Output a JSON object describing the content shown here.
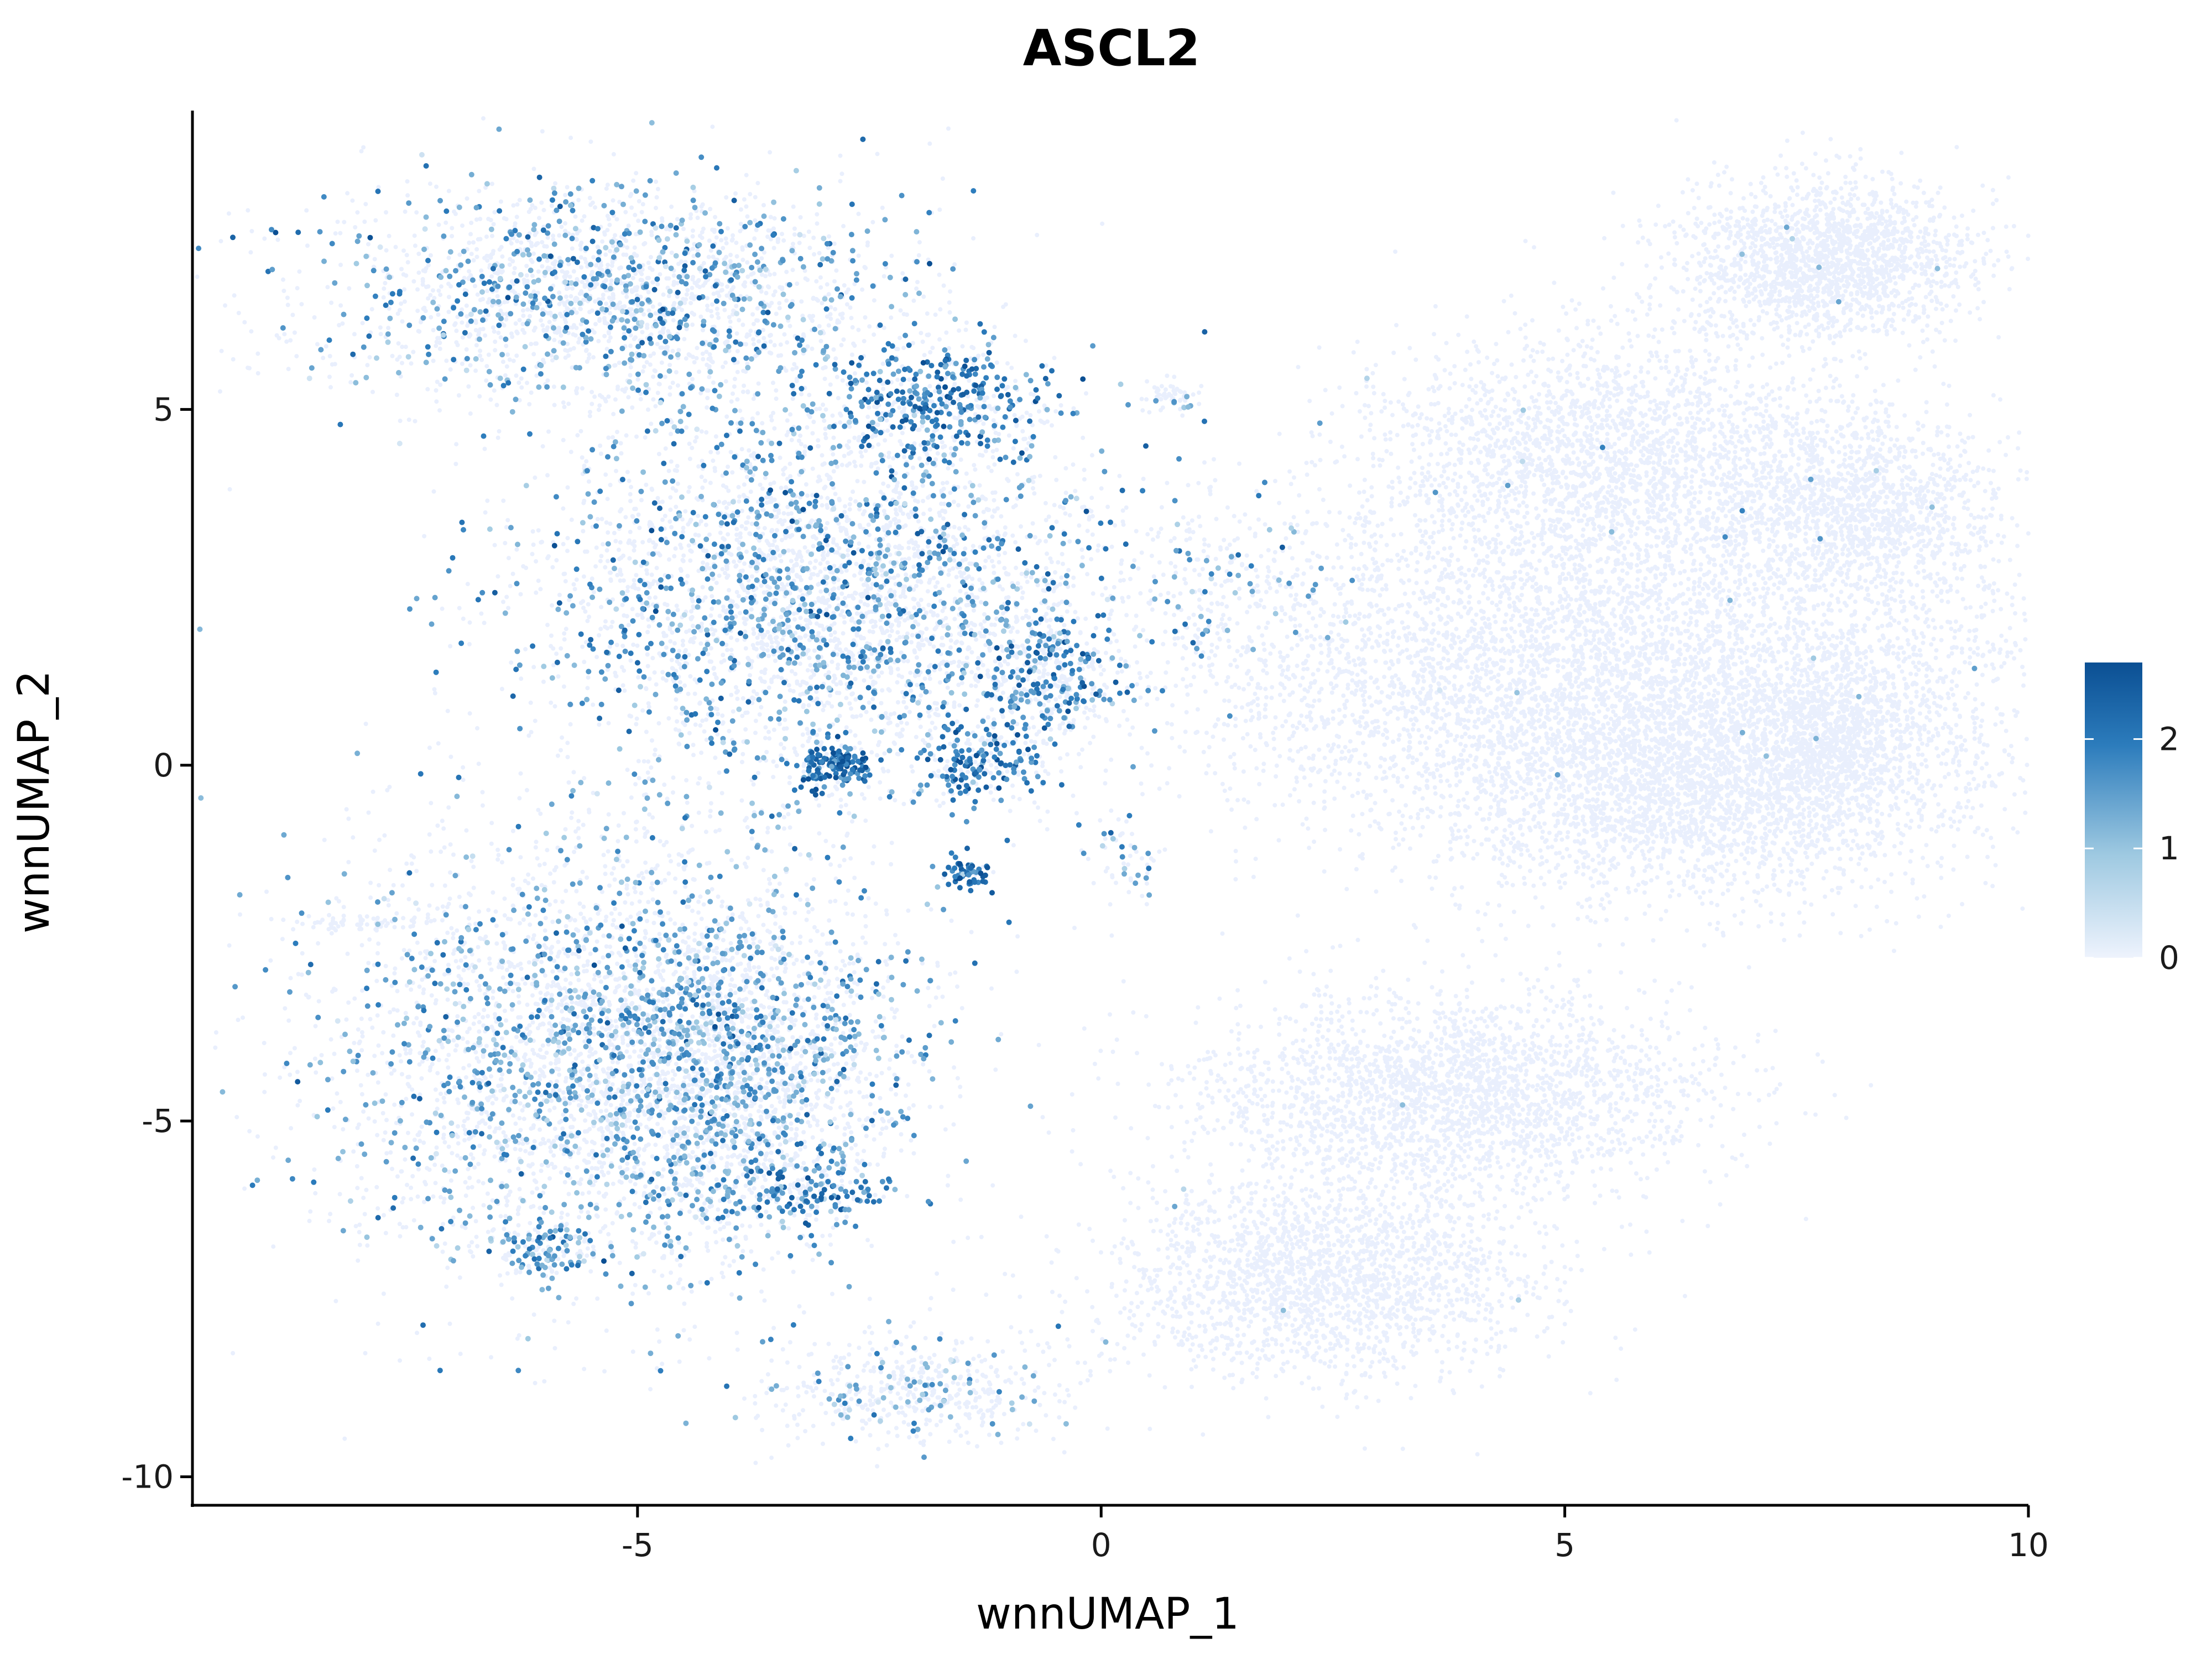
{
  "chart_data": {
    "type": "scatter",
    "title": "ASCL2",
    "xlabel": "wnnUMAP_1",
    "ylabel": "wnnUMAP_2",
    "xlim": [
      -9.8,
      10
    ],
    "ylim": [
      -10.4,
      9.2
    ],
    "x_ticks": [
      -5,
      0,
      5,
      10
    ],
    "x_tick_labels": [
      "-5",
      "0",
      "5",
      "10"
    ],
    "y_ticks": [
      -10,
      -5,
      0,
      5
    ],
    "y_tick_labels": [
      "-10",
      "-5",
      "0",
      "5"
    ],
    "grid": false,
    "legend": {
      "placement": "right",
      "kind": "colorbar",
      "ticks": [
        0,
        1,
        2
      ],
      "tick_labels": [
        "0",
        "1",
        "2"
      ],
      "min": 0,
      "max": 2.7,
      "colors": [
        "#eef3fd",
        "#9ec9e1",
        "#2c7cbc",
        "#0b4f93"
      ]
    },
    "low_color": "#e9effd",
    "clusters": [
      {
        "name": "upper-left",
        "cx": -5.2,
        "cy": 6.6,
        "sx": 1.6,
        "sy": 0.8,
        "n": 2200,
        "expr_frac": 0.3,
        "mean": 1.5
      },
      {
        "name": "upper-middle",
        "cx": -3.0,
        "cy": 2.4,
        "sx": 1.5,
        "sy": 1.3,
        "n": 3600,
        "expr_frac": 0.28,
        "mean": 1.6
      },
      {
        "name": "upper-right-tip",
        "cx": -1.8,
        "cy": 5.1,
        "sx": 0.6,
        "sy": 0.4,
        "n": 500,
        "expr_frac": 0.55,
        "mean": 1.9
      },
      {
        "name": "small-hot-1",
        "cx": -2.9,
        "cy": 0.0,
        "sx": 0.2,
        "sy": 0.15,
        "n": 140,
        "expr_frac": 0.85,
        "mean": 2.2
      },
      {
        "name": "small-hot-2",
        "cx": -1.3,
        "cy": 0.0,
        "sx": 0.35,
        "sy": 0.25,
        "n": 180,
        "expr_frac": 0.6,
        "mean": 2.0
      },
      {
        "name": "small-hot-3",
        "cx": -1.45,
        "cy": -1.55,
        "sx": 0.15,
        "sy": 0.1,
        "n": 60,
        "expr_frac": 0.85,
        "mean": 2.1
      },
      {
        "name": "mid-right-arm",
        "cx": -0.6,
        "cy": 1.3,
        "sx": 0.45,
        "sy": 0.45,
        "n": 400,
        "expr_frac": 0.4,
        "mean": 1.8
      },
      {
        "name": "lower-left",
        "cx": -5.6,
        "cy": -4.0,
        "sx": 1.5,
        "sy": 1.6,
        "n": 3000,
        "expr_frac": 0.28,
        "mean": 1.4
      },
      {
        "name": "lower-middle",
        "cx": -4.0,
        "cy": -4.2,
        "sx": 1.0,
        "sy": 1.3,
        "n": 2000,
        "expr_frac": 0.33,
        "mean": 1.5
      },
      {
        "name": "lower-hot",
        "cx": -3.3,
        "cy": -6.0,
        "sx": 0.45,
        "sy": 0.2,
        "n": 160,
        "expr_frac": 0.6,
        "mean": 1.9
      },
      {
        "name": "lower-bottom-spot",
        "cx": -6.1,
        "cy": -6.8,
        "sx": 0.3,
        "sy": 0.2,
        "n": 130,
        "expr_frac": 0.55,
        "mean": 1.7
      },
      {
        "name": "bottom-small",
        "cx": -2.0,
        "cy": -8.8,
        "sx": 0.8,
        "sy": 0.4,
        "n": 500,
        "expr_frac": 0.15,
        "mean": 1.3
      },
      {
        "name": "tail-left",
        "cx": -7.9,
        "cy": -2.2,
        "sx": 0.5,
        "sy": 0.05,
        "n": 60,
        "expr_frac": 0.0,
        "mean": 0
      },
      {
        "name": "bridge-strand",
        "cx": 1.5,
        "cy": 2.6,
        "sx": 0.6,
        "sy": 0.7,
        "n": 200,
        "expr_frac": 0.25,
        "mean": 1.4
      },
      {
        "name": "right-top",
        "cx": 7.8,
        "cy": 7.1,
        "sx": 0.8,
        "sy": 0.55,
        "n": 1800,
        "expr_frac": 0.004,
        "mean": 1.2
      },
      {
        "name": "right-mid-upper",
        "cx": 5.5,
        "cy": 4.3,
        "sx": 1.3,
        "sy": 0.9,
        "n": 2400,
        "expr_frac": 0.004,
        "mean": 1.2
      },
      {
        "name": "right-mid",
        "cx": 5.5,
        "cy": 1.2,
        "sx": 2.4,
        "sy": 1.2,
        "n": 5000,
        "expr_frac": 0.003,
        "mean": 1.2
      },
      {
        "name": "right-lower",
        "cx": 6.5,
        "cy": -0.3,
        "sx": 1.3,
        "sy": 0.8,
        "n": 2200,
        "expr_frac": 0.002,
        "mean": 1.2
      },
      {
        "name": "right-side-upper",
        "cx": 8.2,
        "cy": 3.6,
        "sx": 0.8,
        "sy": 0.7,
        "n": 1300,
        "expr_frac": 0.004,
        "mean": 1.2
      },
      {
        "name": "right-side-lower",
        "cx": 7.9,
        "cy": 0.4,
        "sx": 0.5,
        "sy": 0.6,
        "n": 700,
        "expr_frac": 0.004,
        "mean": 1.2
      },
      {
        "name": "bottom-right-band",
        "cx": 3.8,
        "cy": -4.6,
        "sx": 1.4,
        "sy": 0.7,
        "n": 2400,
        "expr_frac": 0.001,
        "mean": 1.2
      },
      {
        "name": "bottom-right-lower",
        "cx": 2.4,
        "cy": -7.2,
        "sx": 1.2,
        "sy": 0.7,
        "n": 2000,
        "expr_frac": 0.001,
        "mean": 1.2
      },
      {
        "name": "small-right-top",
        "cx": 0.8,
        "cy": 5.2,
        "sx": 0.15,
        "sy": 0.1,
        "n": 60,
        "expr_frac": 0.1,
        "mean": 1.3
      },
      {
        "name": "small-left-dots",
        "cx": 0.2,
        "cy": -1.3,
        "sx": 0.2,
        "sy": 0.3,
        "n": 50,
        "expr_frac": 0.35,
        "mean": 1.5
      }
    ]
  }
}
